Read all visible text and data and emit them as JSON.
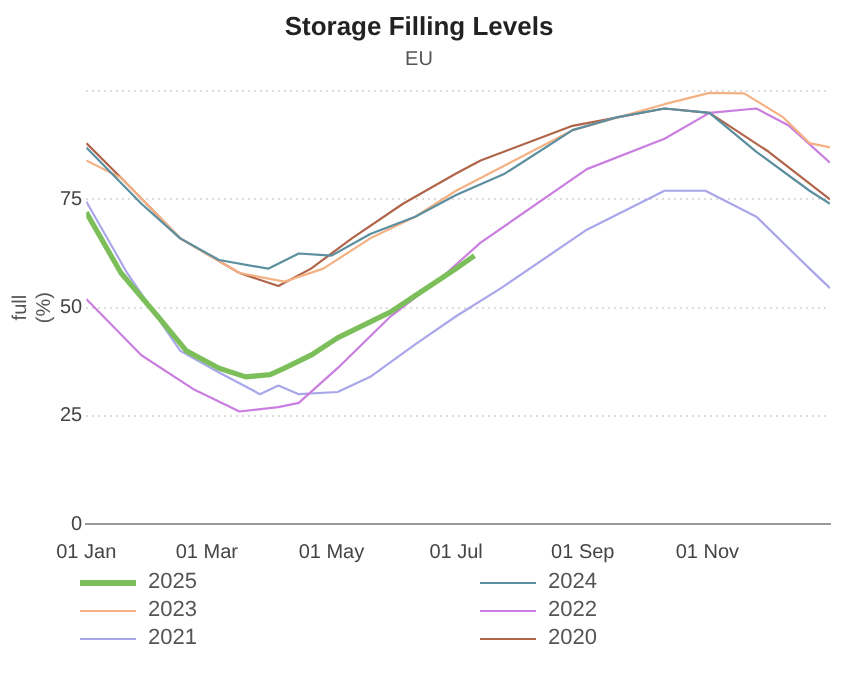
{
  "chart_data": {
    "type": "line",
    "title": "Storage Filling Levels",
    "subtitle": "EU",
    "ylabel": "full (%)",
    "xlim": [
      "--01-01",
      "--12-31"
    ],
    "xticks": [
      {
        "value": "--01-01",
        "label": "01 Jan"
      },
      {
        "value": "--03-01",
        "label": "01 Mar"
      },
      {
        "value": "--05-01",
        "label": "01 May"
      },
      {
        "value": "--07-01",
        "label": "01 Jul"
      },
      {
        "value": "--09-01",
        "label": "01 Sep"
      },
      {
        "value": "--11-01",
        "label": "01 Nov"
      }
    ],
    "ylim": [
      0,
      100
    ],
    "yticks": [
      0,
      25,
      50,
      75,
      {
        "value": 100,
        "label": null
      }
    ],
    "grid": "y",
    "legend": "bottom",
    "marker": "none",
    "line_style": "solid",
    "series": [
      {
        "name": "2025",
        "color": "#7cbf5a",
        "x": [
          "--01-01",
          "--01-18",
          "--02-05",
          "--02-19",
          "--03-07",
          "--03-20",
          "--04-01",
          "--04-08",
          "--04-21",
          "--05-04",
          "--05-17",
          "--05-30",
          "--06-15",
          "--07-01",
          "--07-10"
        ],
        "values": [
          72,
          58,
          48,
          40,
          36,
          34,
          34.5,
          36,
          39,
          43,
          46,
          49,
          54,
          59,
          62
        ]
      },
      {
        "name": "2024",
        "color": "#5b8fa0",
        "x": [
          "--01-01",
          "--01-28",
          "--02-16",
          "--03-07",
          "--03-31",
          "--04-15",
          "--05-01",
          "--05-20",
          "--06-11",
          "--07-01",
          "--07-25",
          "--08-27",
          "--09-18",
          "--10-11",
          "--11-02",
          "--11-25",
          "--12-21",
          "--12-31"
        ],
        "values": [
          87,
          74,
          66,
          61,
          59,
          62.5,
          62,
          67,
          71,
          76,
          81,
          91,
          94,
          96,
          95,
          86,
          77,
          74
        ]
      },
      {
        "name": "2023",
        "color": "#f4b183",
        "x": [
          "--01-01",
          "--01-18",
          "--02-16",
          "--03-17",
          "--04-08",
          "--04-27",
          "--05-20",
          "--06-11",
          "--07-01",
          "--08-27",
          "--10-11",
          "--11-02",
          "--11-19",
          "--12-08",
          "--12-21",
          "--12-31"
        ],
        "values": [
          84,
          80,
          66,
          58,
          56,
          59,
          66,
          71,
          77,
          91,
          97,
          99.6,
          99.5,
          94,
          88,
          87
        ]
      },
      {
        "name": "2022",
        "color": "#c97ee0",
        "x": [
          "--01-01",
          "--01-28",
          "--02-23",
          "--03-17",
          "--04-05",
          "--04-15",
          "--05-04",
          "--05-30",
          "--06-24",
          "--07-13",
          "--09-03",
          "--10-11",
          "--11-02",
          "--11-25",
          "--12-11",
          "--12-31"
        ],
        "values": [
          52,
          39,
          31,
          26,
          27,
          28,
          36,
          48,
          57,
          65,
          82,
          89,
          95,
          96,
          92,
          83.5
        ]
      },
      {
        "name": "2021",
        "color": "#a9a7ea",
        "x": [
          "--01-01",
          "--01-21",
          "--02-16",
          "--03-07",
          "--03-27",
          "--04-05",
          "--04-15",
          "--05-04",
          "--05-20",
          "--06-11",
          "--07-01",
          "--07-23",
          "--09-03",
          "--10-11",
          "--10-31",
          "--11-25",
          "--12-21",
          "--12-31"
        ],
        "values": [
          74.5,
          58,
          40,
          35,
          30,
          32,
          30,
          30.5,
          34,
          41.5,
          48,
          54.5,
          68,
          77,
          77,
          71,
          59,
          54.5
        ]
      },
      {
        "name": "2020",
        "color": "#b0654a",
        "x": [
          "--01-01",
          "--01-18",
          "--02-16",
          "--03-17",
          "--04-05",
          "--04-21",
          "--05-11",
          "--06-05",
          "--07-01",
          "--07-13",
          "--08-27",
          "--10-11",
          "--11-02",
          "--12-01",
          "--12-31"
        ],
        "values": [
          88,
          80,
          66,
          58,
          55,
          59,
          66,
          74,
          81,
          84,
          92,
          96,
          95,
          86,
          75
        ]
      }
    ]
  }
}
